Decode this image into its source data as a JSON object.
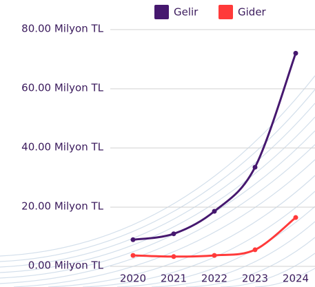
{
  "chart_data": {
    "type": "line",
    "categories": [
      "2020",
      "2021",
      "2022",
      "2023",
      "2024"
    ],
    "series": [
      {
        "name": "Gelir",
        "color": "#46186f",
        "values": [
          9,
          11,
          18.6,
          33.5,
          72
        ]
      },
      {
        "name": "Gider",
        "color": "#ff3a3a",
        "values": [
          3.7,
          3.3,
          3.7,
          5.6,
          16.5
        ]
      }
    ],
    "ylim": [
      0,
      80
    ],
    "yticks": [
      {
        "value": 0,
        "label": "0.00 Milyon TL"
      },
      {
        "value": 20,
        "label": "20.00 Milyon TL"
      },
      {
        "value": 40,
        "label": "40.00 Milyon TL"
      },
      {
        "value": 60,
        "label": "60.00 Milyon TL"
      },
      {
        "value": 80,
        "label": "80.00 Milyon TL"
      }
    ],
    "grid": true,
    "legend": "top"
  }
}
